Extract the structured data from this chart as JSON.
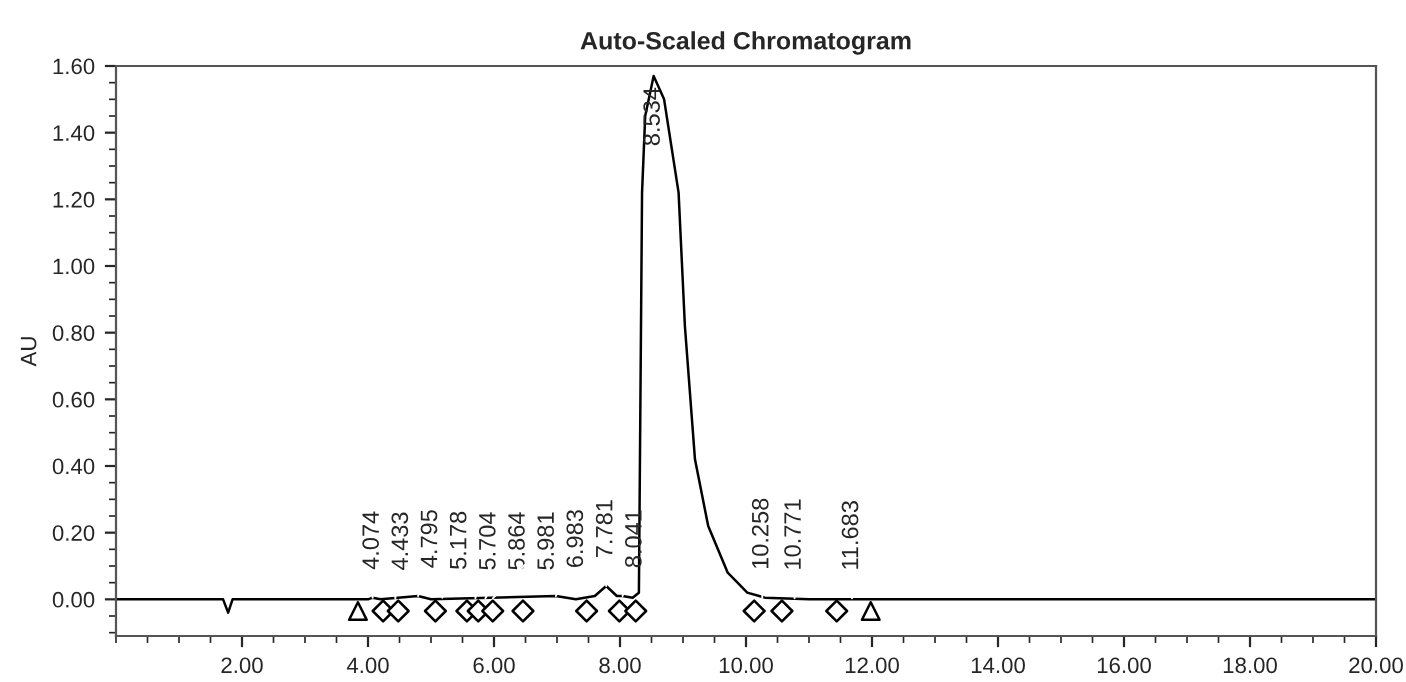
{
  "chart_data": {
    "type": "line",
    "title": "Auto-Scaled Chromatogram",
    "ylabel": "AU",
    "xlim": [
      0,
      20
    ],
    "ylim": [
      -0.11,
      1.6
    ],
    "xticks": [
      {
        "value": 2,
        "label": "2.00"
      },
      {
        "value": 4,
        "label": "4.00"
      },
      {
        "value": 6,
        "label": "6.00"
      },
      {
        "value": 8,
        "label": "8.00"
      },
      {
        "value": 10,
        "label": "10.00"
      },
      {
        "value": 12,
        "label": "12.00"
      },
      {
        "value": 14,
        "label": "14.00"
      },
      {
        "value": 16,
        "label": "16.00"
      },
      {
        "value": 18,
        "label": "18.00"
      },
      {
        "value": 20,
        "label": "20.00"
      }
    ],
    "yticks": [
      {
        "value": 0,
        "label": "0.00"
      },
      {
        "value": 0.2,
        "label": "0.20"
      },
      {
        "value": 0.4,
        "label": "0.40"
      },
      {
        "value": 0.6,
        "label": "0.60"
      },
      {
        "value": 0.8,
        "label": "0.80"
      },
      {
        "value": 1.0,
        "label": "1.00"
      },
      {
        "value": 1.2,
        "label": "1.20"
      },
      {
        "value": 1.4,
        "label": "1.40"
      },
      {
        "value": 1.6,
        "label": "1.60"
      }
    ],
    "grid": false,
    "legend": false,
    "series": [
      {
        "color": "#000000",
        "marker": "none",
        "x": [
          0,
          1.7,
          1.78,
          1.85,
          4.0,
          4.074,
          4.2,
          4.795,
          5.0,
          6.983,
          7.3,
          7.6,
          7.781,
          7.95,
          8.041,
          8.2,
          8.3,
          8.35,
          8.4,
          8.534,
          8.7,
          8.93,
          9.03,
          9.19,
          9.4,
          9.71,
          10.02,
          10.3,
          11.0,
          20
        ],
        "values": [
          0,
          0,
          -0.04,
          0,
          0,
          0.005,
          0,
          0.01,
          0,
          0.01,
          0,
          0.01,
          0.04,
          0.01,
          0.01,
          0.005,
          0.02,
          1.22,
          1.45,
          1.57,
          1.5,
          1.22,
          0.82,
          0.42,
          0.22,
          0.08,
          0.02,
          0.005,
          0,
          0
        ]
      },
      {
        "type": "scatter",
        "color": "#000000",
        "marker": "diamond",
        "x": [
          4.24,
          4.48,
          5.07,
          5.57,
          5.75,
          5.98,
          6.46,
          7.47,
          7.99,
          8.25,
          10.13,
          10.57,
          11.44
        ],
        "values": [
          -0.035,
          -0.035,
          -0.035,
          -0.035,
          -0.035,
          -0.035,
          -0.035,
          -0.035,
          -0.035,
          -0.035,
          -0.035,
          -0.035,
          -0.035
        ]
      },
      {
        "type": "scatter",
        "color": "#000000",
        "marker": "triangle",
        "x": [
          3.84,
          11.98
        ],
        "values": [
          -0.035,
          -0.035
        ]
      }
    ],
    "annotations": [
      {
        "text": "4.074",
        "x": 4.074,
        "y": 0.005
      },
      {
        "text": "4.433",
        "x": 4.433,
        "y": 0.003
      },
      {
        "text": "4.795",
        "x": 4.795,
        "y": 0.01
      },
      {
        "text": "5.178",
        "x": 5.178,
        "y": 0.005
      },
      {
        "text": "5.704",
        "x": 5.704,
        "y": 0.003
      },
      {
        "text": "5.864",
        "x": 5.864,
        "y": 0.003
      },
      {
        "text": "5.981",
        "x": 5.981,
        "y": 0.003
      },
      {
        "text": "6.983",
        "x": 6.983,
        "y": 0.01
      },
      {
        "text": "7.781",
        "x": 7.781,
        "y": 0.04
      },
      {
        "text": "8.041",
        "x": 8.041,
        "y": 0.01
      },
      {
        "text": "8.534",
        "x": 8.534,
        "y": 1.57
      },
      {
        "text": "10.258",
        "x": 10.258,
        "y": 0.005
      },
      {
        "text": "10.771",
        "x": 10.771,
        "y": 0.003
      },
      {
        "text": "11.683",
        "x": 11.683,
        "y": 0.003
      }
    ]
  }
}
